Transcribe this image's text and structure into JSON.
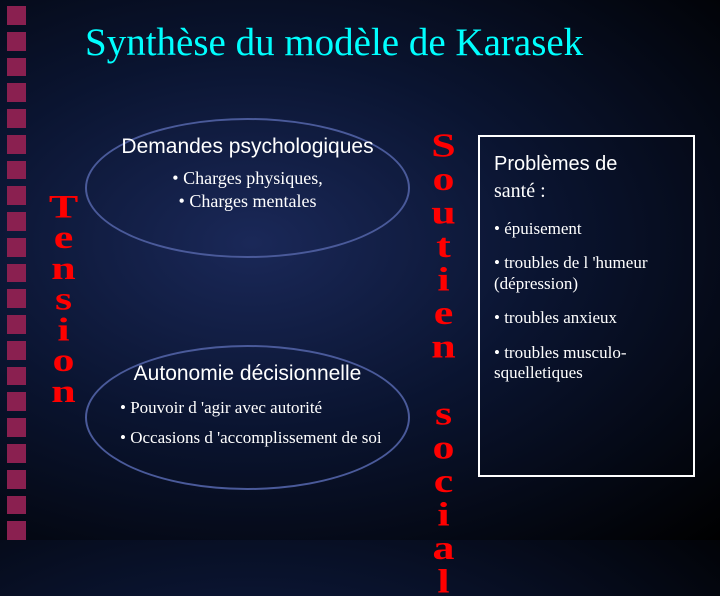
{
  "title": "Synthèse du modèle de Karasek",
  "colors": {
    "title_color": "#00ffff",
    "vertical_text_color": "#ff0000",
    "ellipse_border": "#4a5a9a",
    "box_border": "#ffffff",
    "text_color": "#ffffff",
    "square_color": "#8a2050",
    "bg_center": "#1a2858",
    "bg_edge": "#000000"
  },
  "left_decoration": {
    "square_count": 21
  },
  "top_ellipse": {
    "title": "Demandes psychologiques",
    "sub1": "• Charges physiques,",
    "sub2": "• Charges mentales"
  },
  "bottom_ellipse": {
    "title": "Autonomie décisionnelle",
    "bullet1": "•  Pouvoir d 'agir avec autorité",
    "bullet2": "•  Occasions d 'accomplissement de soi"
  },
  "vertical_left": "Tension",
  "vertical_right": "Soutien social",
  "box": {
    "title_line1": "Problèmes de",
    "title_line2": "santé :",
    "items": [
      "• épuisement",
      "• troubles de l 'humeur (dépression)",
      "• troubles anxieux",
      "• troubles musculo-squelletiques"
    ]
  }
}
